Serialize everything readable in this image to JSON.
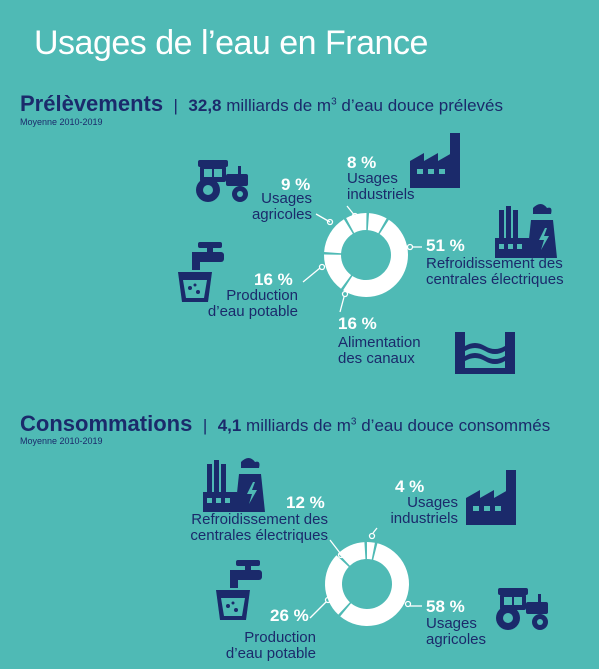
{
  "title": "Usages de l’eau en France",
  "prelevements": {
    "heading": "Prélèvements",
    "sep": "|",
    "value": "32,8",
    "text_a": " milliards de m",
    "sup": "3",
    "text_b": " d’eau douce prélevés",
    "note": "Moyenne 2010-2019",
    "items": [
      {
        "pct": "9 %",
        "l1": "Usages",
        "l2": "agricoles"
      },
      {
        "pct": "8 %",
        "l1": "Usages",
        "l2": "industriels"
      },
      {
        "pct": "51 %",
        "l1": "Refroidissement des",
        "l2": "centrales électriques"
      },
      {
        "pct": "16 %",
        "l1": "Production",
        "l2": "d’eau potable"
      },
      {
        "pct": "16 %",
        "l1": "Alimentation",
        "l2": "des canaux"
      }
    ]
  },
  "consommations": {
    "heading": "Consommations",
    "sep": "|",
    "value": "4,1",
    "text_a": " milliards de m",
    "sup": "3",
    "text_b": " d’eau douce consommés",
    "note": "Moyenne 2010-2019",
    "items": [
      {
        "pct": "12 %",
        "l1": "Refroidissement des",
        "l2": "centrales électriques"
      },
      {
        "pct": "4 %",
        "l1": "Usages",
        "l2": "industriels"
      },
      {
        "pct": "26 %",
        "l1": "Production",
        "l2": "d’eau potable"
      },
      {
        "pct": "58 %",
        "l1": "Usages",
        "l2": "agricoles"
      }
    ]
  },
  "chart_data": [
    {
      "type": "pie",
      "title": "Prélèvements",
      "categories": [
        "Usages agricoles",
        "Usages industriels",
        "Refroidissement des centrales électriques",
        "Alimentation des canaux",
        "Production d’eau potable"
      ],
      "values": [
        9,
        8,
        51,
        16,
        16
      ]
    },
    {
      "type": "pie",
      "title": "Consommations",
      "categories": [
        "Refroidissement des centrales électriques",
        "Usages industriels",
        "Usages agricoles",
        "Production d’eau potable"
      ],
      "values": [
        12,
        4,
        58,
        26
      ]
    }
  ],
  "colors": {
    "background": "#4fbab5",
    "navy": "#1b2a6b",
    "white": "#ffffff"
  },
  "icons": [
    "tractor-icon",
    "factory-icon",
    "power-plant-icon",
    "faucet-glass-icon",
    "canal-icon"
  ]
}
